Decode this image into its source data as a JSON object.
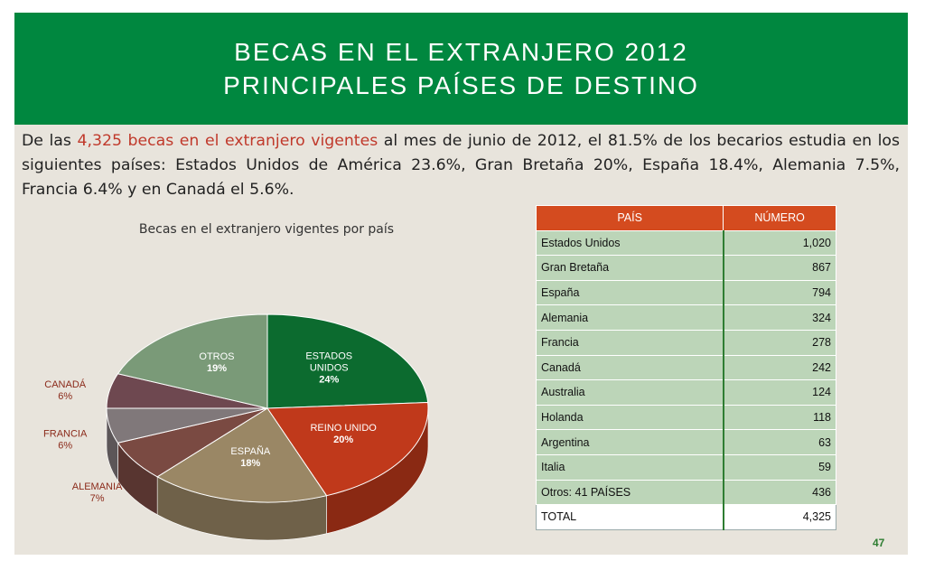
{
  "header": {
    "title_line1": "BECAS EN EL EXTRANJERO 2012",
    "title_line2": "PRINCIPALES PAÍSES DE DESTINO"
  },
  "intro": {
    "part1": "De las ",
    "highlight": "4,325 becas en el extranjero vigentes",
    "part2": " al mes de junio de 2012, el 81.5% de los becarios estudia en los siguientes países: Estados Unidos de América 23.6%, Gran Bretaña 20%, España 18.4%,  Alemania 7.5%, Francia 6.4% y en Canadá el 5.6%."
  },
  "chart_data": {
    "type": "pie",
    "title": "Becas en el extranjero vigentes por país",
    "slices": [
      {
        "label": "ESTADOS UNIDOS",
        "pct_label": "24%",
        "value": 24,
        "color": "#0c6b2f"
      },
      {
        "label": "REINO UNIDO",
        "pct_label": "20%",
        "value": 20,
        "color": "#c0391b"
      },
      {
        "label": "ESPAÑA",
        "pct_label": "18%",
        "value": 18,
        "color": "#9a8765"
      },
      {
        "label": "ALEMANIA",
        "pct_label": "7%",
        "value": 7,
        "color": "#7a4a42"
      },
      {
        "label": "FRANCIA",
        "pct_label": "6%",
        "value": 6,
        "color": "#80787a"
      },
      {
        "label": "CANADÁ",
        "pct_label": "6%",
        "value": 6,
        "color": "#6e4850"
      },
      {
        "label": "OTROS",
        "pct_label": "19%",
        "value": 19,
        "color": "#7a9a78"
      }
    ]
  },
  "table": {
    "headers": [
      "PAÍS",
      "NÚMERO"
    ],
    "rows": [
      [
        "Estados Unidos",
        "1,020"
      ],
      [
        "Gran Bretaña",
        "867"
      ],
      [
        "España",
        "794"
      ],
      [
        "Alemania",
        "324"
      ],
      [
        "Francia",
        "278"
      ],
      [
        "Canadá",
        "242"
      ],
      [
        "Australia",
        "124"
      ],
      [
        "Holanda",
        "118"
      ],
      [
        "Argentina",
        "63"
      ],
      [
        "Italia",
        "59"
      ],
      [
        "Otros: 41 PAÍSES",
        "436"
      ],
      [
        "TOTAL",
        "4,325"
      ]
    ]
  },
  "page_number": "47"
}
